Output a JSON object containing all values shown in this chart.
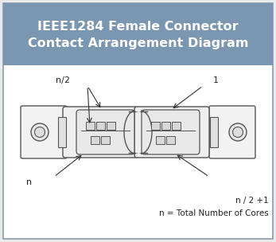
{
  "title_line1": "IEEE1284 Female Connector",
  "title_line2": "Contact Arrangement Diagram",
  "title_bg_color": "#7a96b0",
  "title_text_color": "#ffffff",
  "bg_color": "#ffffff",
  "outer_bg_color": "#e8eaec",
  "border_color": "#8a9aaa",
  "connector_edge": "#555555",
  "connector_fill": "#f0f0f0",
  "label_n2": "n/2",
  "label_1": "1",
  "label_n": "n",
  "label_note1": "n / 2 +1",
  "label_note2": "n = Total Number of Cores",
  "label_fontsize": 8,
  "note_fontsize": 7.5,
  "title_fontsize": 11.5
}
